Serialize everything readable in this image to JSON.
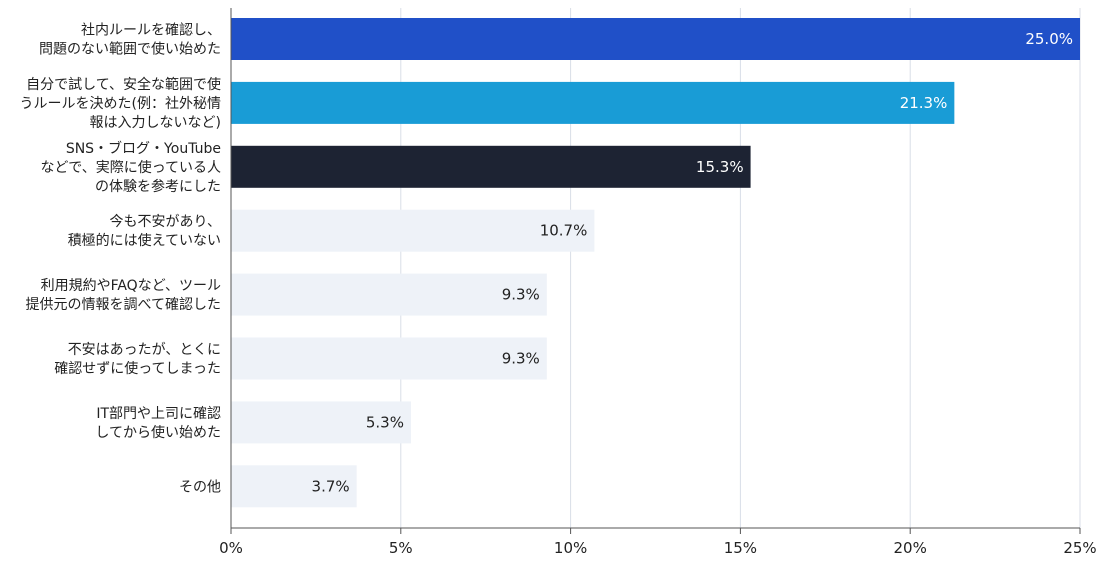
{
  "chart_data": {
    "type": "bar",
    "orientation": "horizontal",
    "title": "",
    "xlabel": "",
    "ylabel": "",
    "xlim": [
      0,
      25
    ],
    "grid": true,
    "x_ticks": [
      0,
      5,
      10,
      15,
      20,
      25
    ],
    "x_tick_labels": [
      "0%",
      "5%",
      "10%",
      "15%",
      "20%",
      "25%"
    ],
    "categories": [
      [
        "社内ルールを確認し、",
        "問題のない範囲で使い始めた"
      ],
      [
        "自分で試して、安全な範囲で使",
        "うルールを決めた(例：社外秘情",
        "報は入力しないなど)"
      ],
      [
        "SNS・ブログ・YouTube",
        "などで、実際に使っている人",
        "の体験を参考にした"
      ],
      [
        "今も不安があり、",
        "積極的には使えていない"
      ],
      [
        "利用規約やFAQなど、ツール",
        "提供元の情報を調べて確認した"
      ],
      [
        "不安はあったが、とくに",
        "確認せずに使ってしまった"
      ],
      [
        "IT部門や上司に確認",
        "してから使い始めた"
      ],
      [
        "その他"
      ]
    ],
    "values": [
      25.0,
      21.3,
      15.3,
      10.7,
      9.3,
      9.3,
      5.3,
      3.7
    ],
    "value_labels": [
      "25.0%",
      "21.3%",
      "15.3%",
      "10.7%",
      "9.3%",
      "9.3%",
      "5.3%",
      "3.7%"
    ],
    "colors": [
      "#2050c8",
      "#199cd6",
      "#1d2333",
      "#eef2f8",
      "#eef2f8",
      "#eef2f8",
      "#eef2f8",
      "#eef2f8"
    ],
    "value_label_colors": [
      "#ffffff",
      "#ffffff",
      "#ffffff",
      "#222222",
      "#222222",
      "#222222",
      "#222222",
      "#222222"
    ],
    "grid_color": "#d9dee7",
    "axis_color": "#555555",
    "text_color": "#222222"
  }
}
